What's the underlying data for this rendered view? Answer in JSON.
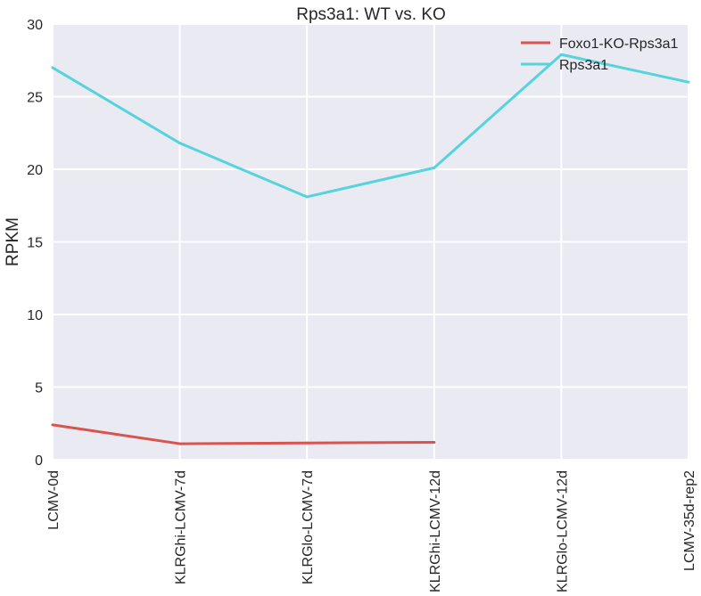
{
  "chart_data": {
    "type": "line",
    "title": "Rps3a1: WT vs. KO",
    "xlabel": "",
    "ylabel": "RPKM",
    "categories": [
      "LCMV-0d",
      "KLRGhi-LCMV-7d",
      "KLRGlo-LCMV-7d",
      "KLRGhi-LCMV-12d",
      "KLRGlo-LCMV-12d",
      "LCMV-35d-rep2"
    ],
    "ylim": [
      0,
      30
    ],
    "yticks": [
      "0",
      "5",
      "10",
      "15",
      "20",
      "25",
      "30"
    ],
    "grid": true,
    "legend_position": "top-right",
    "series": [
      {
        "name": "Foxo1-KO-Rps3a1",
        "color": "#d9534f",
        "values": [
          2.4,
          1.1,
          1.15,
          1.2,
          null,
          null
        ]
      },
      {
        "name": "Rps3a1",
        "color": "#56d3dc",
        "values": [
          27.0,
          21.8,
          18.1,
          20.1,
          27.9,
          26.0
        ]
      }
    ]
  }
}
